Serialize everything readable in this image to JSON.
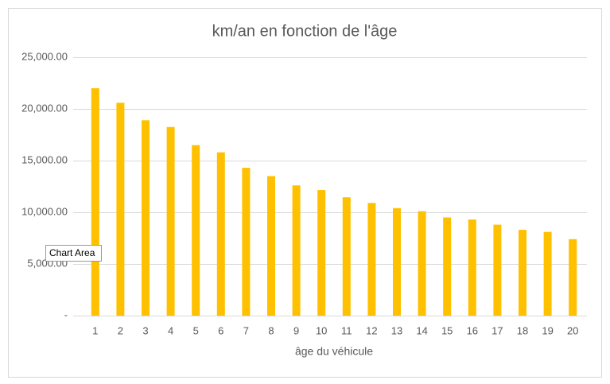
{
  "chart_data": {
    "type": "bar",
    "title": "km/an en fonction de l'âge",
    "x_label": "âge du véhicule",
    "categories": [
      "1",
      "2",
      "3",
      "4",
      "5",
      "6",
      "7",
      "8",
      "9",
      "10",
      "11",
      "12",
      "13",
      "14",
      "15",
      "16",
      "17",
      "18",
      "19",
      "20"
    ],
    "values": [
      22000,
      20600,
      18900,
      18250,
      16500,
      15800,
      14300,
      13500,
      12600,
      12150,
      11450,
      10900,
      10400,
      10100,
      9500,
      9300,
      8800,
      8300,
      8100,
      7400
    ],
    "color": "#ffc000",
    "ylim": [
      0,
      25000
    ],
    "yticks": [
      {
        "value": 0,
        "label": "-"
      },
      {
        "value": 5000,
        "label": "5,000.00"
      },
      {
        "value": 10000,
        "label": "10,000.00"
      },
      {
        "value": 15000,
        "label": "15,000.00"
      },
      {
        "value": 20000,
        "label": "20,000.00"
      },
      {
        "value": 25000,
        "label": "25,000.00"
      }
    ],
    "grid": true
  },
  "tooltip": "Chart Area"
}
